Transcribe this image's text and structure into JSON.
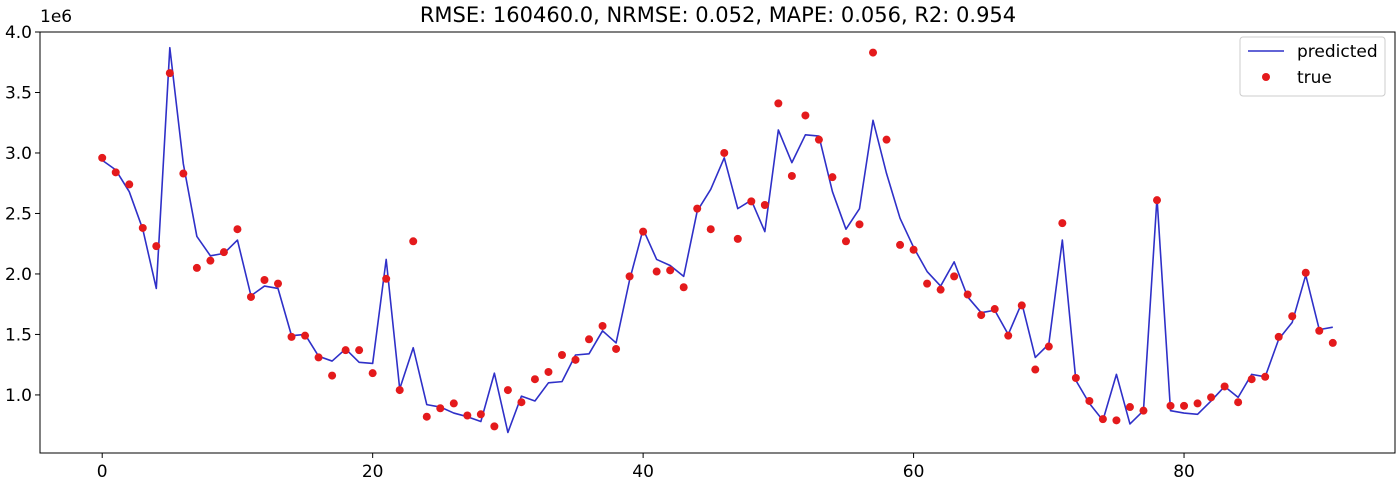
{
  "chart_data": {
    "type": "line",
    "title": "RMSE: 160460.0, NRMSE: 0.052, MAPE: 0.056, R2: 0.954",
    "xlabel": "",
    "ylabel": "",
    "y_offset_label": "1e6",
    "xlim": [
      -4.6,
      95.6
    ],
    "ylim": [
      520000,
      4000000
    ],
    "xticks": [
      0,
      20,
      40,
      60,
      80
    ],
    "xtick_labels": [
      "0",
      "20",
      "40",
      "60",
      "80"
    ],
    "yticks": [
      1000000,
      1500000,
      2000000,
      2500000,
      3000000,
      3500000,
      4000000
    ],
    "ytick_labels": [
      "1.0",
      "1.5",
      "2.0",
      "2.5",
      "3.0",
      "3.5",
      "4.0"
    ],
    "grid": false,
    "legend_position": "top-right",
    "series": [
      {
        "name": "predicted",
        "kind": "line",
        "color": "#2f30c8",
        "values": [
          2940000,
          2860000,
          2680000,
          2370000,
          1880000,
          3870000,
          2910000,
          2310000,
          2150000,
          2170000,
          2280000,
          1820000,
          1900000,
          1880000,
          1490000,
          1500000,
          1320000,
          1280000,
          1380000,
          1270000,
          1260000,
          2120000,
          1050000,
          1390000,
          920000,
          900000,
          850000,
          820000,
          780000,
          1180000,
          690000,
          990000,
          950000,
          1100000,
          1110000,
          1330000,
          1340000,
          1530000,
          1430000,
          1950000,
          2370000,
          2120000,
          2070000,
          1980000,
          2520000,
          2700000,
          2960000,
          2540000,
          2610000,
          2350000,
          3190000,
          2920000,
          3150000,
          3140000,
          2680000,
          2370000,
          2540000,
          3270000,
          2830000,
          2460000,
          2220000,
          2020000,
          1900000,
          2100000,
          1810000,
          1680000,
          1700000,
          1500000,
          1760000,
          1310000,
          1420000,
          2280000,
          1120000,
          930000,
          790000,
          1170000,
          760000,
          870000,
          2630000,
          870000,
          850000,
          840000,
          950000,
          1070000,
          980000,
          1170000,
          1150000,
          1460000,
          1600000,
          1990000,
          1540000,
          1560000
        ]
      },
      {
        "name": "true",
        "kind": "scatter",
        "color": "#e41a1c",
        "values": [
          2960000,
          2840000,
          2740000,
          2380000,
          2230000,
          3660000,
          2830000,
          2050000,
          2110000,
          2180000,
          2370000,
          1810000,
          1950000,
          1920000,
          1480000,
          1490000,
          1310000,
          1160000,
          1370000,
          1370000,
          1180000,
          1960000,
          1040000,
          2270000,
          820000,
          890000,
          930000,
          830000,
          840000,
          740000,
          1040000,
          940000,
          1130000,
          1190000,
          1330000,
          1290000,
          1460000,
          1570000,
          1380000,
          1980000,
          2350000,
          2020000,
          2030000,
          1890000,
          2540000,
          2370000,
          3000000,
          2290000,
          2600000,
          2570000,
          3410000,
          2810000,
          3310000,
          3110000,
          2800000,
          2270000,
          2410000,
          3830000,
          3110000,
          2240000,
          2200000,
          1920000,
          1870000,
          1980000,
          1830000,
          1660000,
          1710000,
          1490000,
          1740000,
          1210000,
          1400000,
          2420000,
          1140000,
          950000,
          800000,
          790000,
          900000,
          870000,
          2610000,
          910000,
          910000,
          930000,
          980000,
          1070000,
          940000,
          1130000,
          1150000,
          1480000,
          1650000,
          2010000,
          1530000,
          1430000
        ]
      }
    ]
  }
}
